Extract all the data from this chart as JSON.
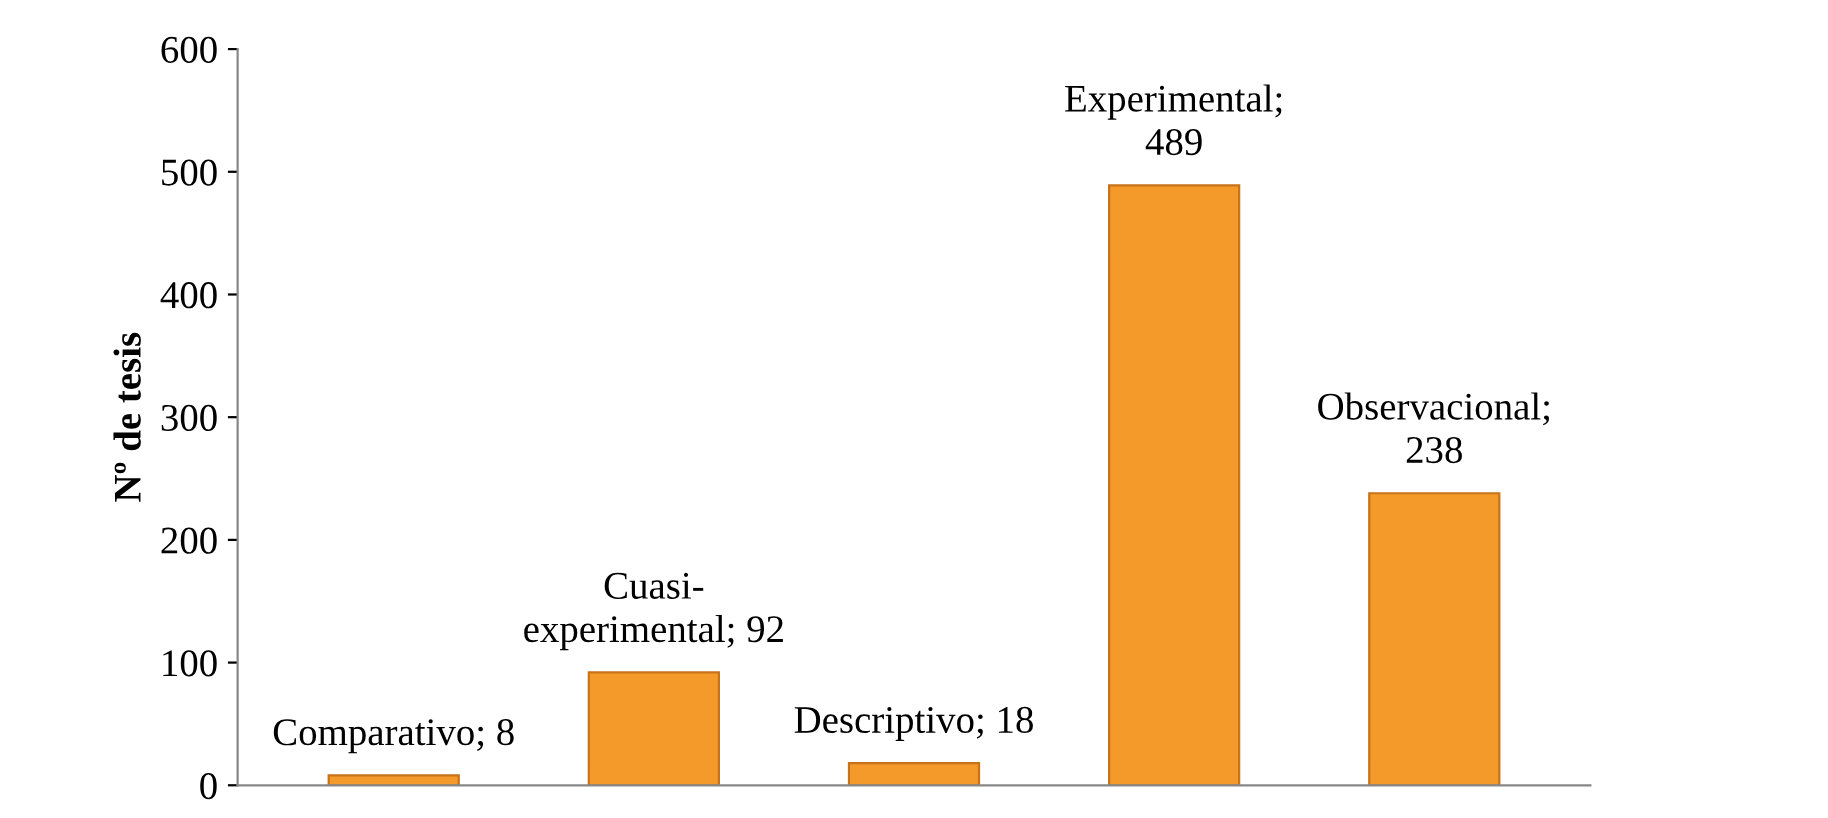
{
  "chart_data": {
    "type": "bar",
    "ylabel": "Nº de tesis",
    "categories": [
      null,
      null,
      null,
      null,
      null
    ],
    "values": [
      8,
      92,
      18,
      489,
      238
    ],
    "value_labels": [
      "Comparativo; 8",
      "Cuasi-\nexperimental; 92",
      "Descriptivo; 18",
      "Experimental;\n489",
      "Observacional;\n238"
    ],
    "color": "#f39a2b",
    "ylim": [
      0,
      600
    ],
    "yticks": [
      0,
      100,
      200,
      300,
      400,
      500,
      600
    ],
    "grid": false,
    "legend": false
  }
}
